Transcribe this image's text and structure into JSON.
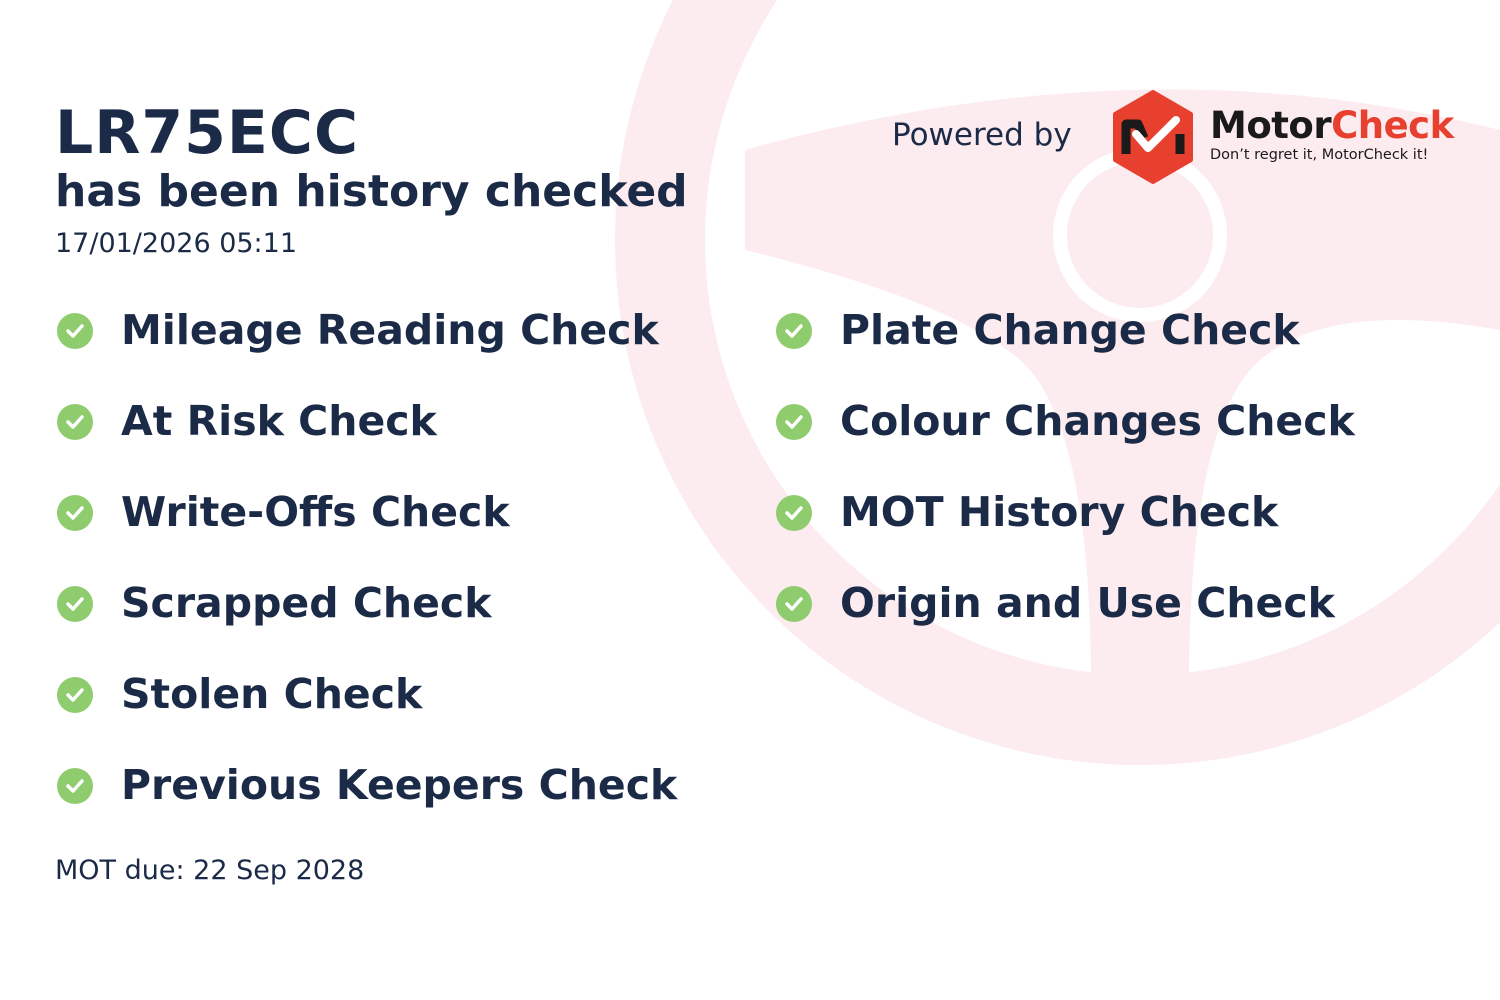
{
  "plate": "LR75ECC",
  "subtitle": "has been history checked",
  "datetime": "17/01/2026 05:11",
  "powered_by": "Powered by",
  "brand": {
    "name_part1": "Motor",
    "name_part2": "Check",
    "tagline": "Don’t regret it, MotorCheck it!",
    "colors": {
      "red": "#e8402f",
      "dark": "#1a1a1a"
    }
  },
  "checks_left": [
    "Mileage Reading Check",
    "At Risk Check",
    "Write-Offs Check",
    "Scrapped Check",
    "Stolen Check",
    "Previous Keepers Check"
  ],
  "checks_right": [
    "Plate Change Check",
    "Colour Changes Check",
    "MOT History Check",
    "Origin and Use Check"
  ],
  "check_icon": "check-circle-icon",
  "mot_due": "MOT due: 22 Sep 2028",
  "colors": {
    "text": "#1b2a47",
    "check": "#8fcc6e",
    "background_wheel": "#fcebef"
  }
}
